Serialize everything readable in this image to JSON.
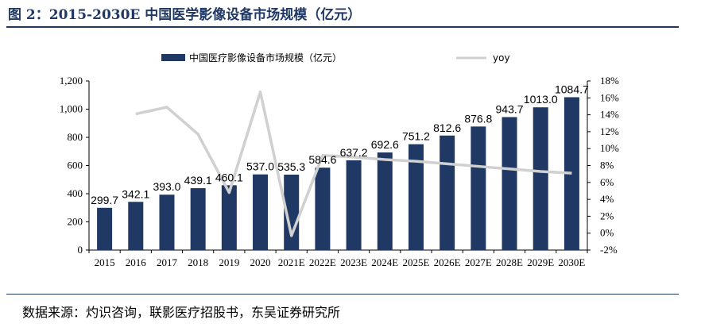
{
  "header": {
    "figure_title": "图 2：2015-2030E 中国医学影像设备市场规模（亿元）"
  },
  "footer": {
    "source": "数据来源：灼识咨询，联影医疗招股书，东吴证券研究所"
  },
  "colors": {
    "bar": "#1f3864",
    "line": "#d0d0d0",
    "title": "#1f3864"
  },
  "chart_data": {
    "type": "bar",
    "title": "",
    "xlabel": "",
    "ylabel": "",
    "categories": [
      "2015",
      "2016",
      "2017",
      "2018",
      "2019",
      "2020",
      "2021E",
      "2022E",
      "2023E",
      "2024E",
      "2025E",
      "2026E",
      "2027E",
      "2028E",
      "2029E",
      "2030E"
    ],
    "series": [
      {
        "name": "中国医疗影像设备市场规模（亿元）",
        "type": "bar",
        "axis": "left",
        "values": [
          299.7,
          342.1,
          393.0,
          439.1,
          460.1,
          537.0,
          535.3,
          584.6,
          637.2,
          692.6,
          751.2,
          812.6,
          876.8,
          943.7,
          1013.0,
          1084.7
        ],
        "data_labels": [
          "299.7",
          "342.1",
          "393.0",
          "439.1",
          "460.1",
          "537.0",
          "535.3",
          "584.6",
          "637.2",
          "692.6",
          "751.2",
          "812.6",
          "876.8",
          "943.7",
          "1013.0",
          "1084.7"
        ]
      },
      {
        "name": "yoy",
        "type": "line",
        "axis": "right",
        "values": [
          null,
          14.1,
          14.9,
          11.7,
          4.8,
          16.7,
          -0.3,
          9.2,
          9.0,
          8.7,
          8.5,
          8.2,
          7.9,
          7.6,
          7.3,
          7.1
        ]
      }
    ],
    "y_left": {
      "lim": [
        0,
        1200
      ],
      "ticks": [
        0,
        200,
        400,
        600,
        800,
        1000,
        1200
      ],
      "tick_labels": [
        "0",
        "200",
        "400",
        "600",
        "800",
        "1,000",
        "1,200"
      ]
    },
    "y_right": {
      "lim": [
        -2,
        18
      ],
      "ticks": [
        -2,
        0,
        2,
        4,
        6,
        8,
        10,
        12,
        14,
        16,
        18
      ],
      "tick_labels": [
        "-2%",
        "0%",
        "2%",
        "4%",
        "6%",
        "8%",
        "10%",
        "12%",
        "14%",
        "16%",
        "18%"
      ]
    },
    "grid": false,
    "legend_position": "top"
  }
}
